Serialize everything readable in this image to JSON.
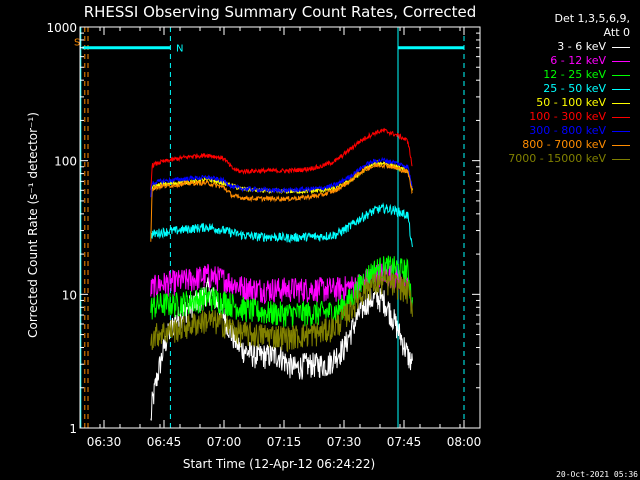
{
  "chart_data": {
    "type": "line",
    "title": "RHESSI Observing Summary Count Rates, Corrected",
    "xlabel": "Start Time (12-Apr-12 06:24:22)",
    "ylabel": "Corrected Count Rate (s⁻¹ detector⁻¹)",
    "x_unit": "minutes since 06:24",
    "xlim": [
      0,
      100
    ],
    "ylim": [
      1,
      1000
    ],
    "yscale": "log",
    "x_ticks": [
      {
        "value": 6,
        "label": "06:30"
      },
      {
        "value": 21,
        "label": "06:45"
      },
      {
        "value": 36,
        "label": "07:00"
      },
      {
        "value": 51,
        "label": "07:15"
      },
      {
        "value": 66,
        "label": "07:30"
      },
      {
        "value": 81,
        "label": "07:45"
      },
      {
        "value": 96,
        "label": "08:00"
      }
    ],
    "y_ticks": [
      {
        "value": 1,
        "label": "1"
      },
      {
        "value": 10,
        "label": "10"
      },
      {
        "value": 100,
        "label": "100"
      },
      {
        "value": 1000,
        "label": "1000"
      }
    ],
    "markers": [
      {
        "type": "solid",
        "x": 0.2,
        "color": "#00ffff"
      },
      {
        "type": "dashed",
        "x": 1.2,
        "color": "#ff8c00"
      },
      {
        "type": "dashed",
        "x": 2.0,
        "color": "#ff8c00"
      },
      {
        "type": "dashed",
        "x": 22.6,
        "color": "#00ffff"
      },
      {
        "type": "solid",
        "x": 79.5,
        "color": "#00ffff"
      },
      {
        "type": "dashed",
        "x": 96.0,
        "color": "#00ffff"
      }
    ],
    "night_bars": [
      {
        "x0": 0.6,
        "x1": 22.6,
        "y": 700,
        "color": "#00ffff"
      },
      {
        "x0": 79.5,
        "x1": 96.0,
        "y": 700,
        "color": "#00ffff"
      }
    ],
    "flag_labels": [
      {
        "text": "S",
        "x": -1.5,
        "y": 780,
        "color": "#ff8c00"
      },
      {
        "text": "N",
        "x": 24.0,
        "y": 700,
        "color": "#00ffff"
      }
    ],
    "series": [
      {
        "name": "3 - 6 keV",
        "color": "#ffffff",
        "x": [
          17.7,
          18,
          19,
          20,
          21,
          22,
          24,
          26,
          28,
          30,
          32,
          34,
          36,
          38,
          40,
          42,
          44,
          46,
          48,
          50,
          52,
          54,
          56,
          58,
          60,
          62,
          64,
          66,
          68,
          70,
          72,
          74,
          76,
          78,
          80,
          82,
          83.2
        ],
        "y": [
          1.1,
          1.5,
          2.2,
          3.0,
          4.0,
          5.0,
          6.5,
          7.5,
          8.5,
          9.0,
          11.0,
          9.0,
          7.0,
          5.0,
          4.0,
          3.7,
          3.5,
          3.5,
          3.5,
          3.5,
          3.0,
          2.8,
          3.0,
          3.0,
          3.0,
          3.0,
          3.5,
          4.0,
          5.5,
          7.5,
          9.0,
          9.5,
          9.0,
          7.0,
          5.0,
          3.5,
          3.0
        ]
      },
      {
        "name": "6 - 12 keV",
        "color": "#ff00ff",
        "x": [
          17.7,
          20,
          24,
          28,
          32,
          36,
          40,
          44,
          48,
          52,
          56,
          60,
          64,
          68,
          70,
          72,
          74,
          76,
          78,
          80,
          82,
          83.2
        ],
        "y": [
          11,
          12,
          12.5,
          13,
          14,
          13,
          11.5,
          11,
          11,
          11,
          11,
          11,
          11,
          11.5,
          12,
          13,
          14,
          14.5,
          14,
          13,
          12,
          8
        ]
      },
      {
        "name": "12 - 25 keV",
        "color": "#00ff00",
        "x": [
          17.7,
          20,
          24,
          28,
          32,
          36,
          40,
          44,
          48,
          52,
          56,
          60,
          64,
          68,
          70,
          72,
          74,
          76,
          78,
          80,
          82,
          83.2
        ],
        "y": [
          8,
          8.5,
          8.5,
          9,
          9.5,
          9,
          8,
          7.5,
          7.3,
          7.2,
          7.3,
          7.3,
          7.5,
          9.5,
          12,
          14,
          15.5,
          16,
          16,
          15.5,
          15,
          8
        ]
      },
      {
        "name": "25 - 50 keV",
        "color": "#00ffff",
        "x": [
          17.7,
          20,
          24,
          28,
          32,
          36,
          40,
          44,
          48,
          52,
          56,
          60,
          64,
          68,
          70,
          72,
          74,
          76,
          78,
          80,
          82,
          83.2
        ],
        "y": [
          28,
          29,
          30,
          31,
          32,
          30,
          28,
          27,
          27,
          26.5,
          27,
          27,
          28,
          33,
          37,
          40,
          43,
          44,
          43,
          41,
          39,
          20
        ]
      },
      {
        "name": "50 - 100 keV",
        "color": "#ffff00",
        "x": [
          17.7,
          20,
          24,
          28,
          32,
          36,
          40,
          44,
          48,
          52,
          56,
          60,
          64,
          68,
          70,
          72,
          74,
          76,
          78,
          80,
          82,
          83.2
        ],
        "y": [
          63,
          66,
          68,
          70,
          72,
          68,
          62,
          60,
          59,
          59,
          59,
          60,
          62,
          72,
          80,
          90,
          95,
          96,
          92,
          88,
          84,
          58
        ]
      },
      {
        "name": "100 - 300 keV",
        "color": "#ff0000",
        "x": [
          17.7,
          18,
          20,
          24,
          28,
          32,
          36,
          38,
          40,
          44,
          48,
          52,
          56,
          60,
          64,
          68,
          70,
          72,
          74,
          76,
          78,
          80,
          82,
          83.2
        ],
        "y": [
          60,
          92,
          97,
          103,
          108,
          110,
          104,
          88,
          83,
          84,
          84,
          84,
          86,
          90,
          100,
          125,
          140,
          152,
          163,
          168,
          160,
          152,
          140,
          85
        ]
      },
      {
        "name": "300 - 800 keV",
        "color": "#0000ff",
        "x": [
          17.7,
          18,
          20,
          24,
          28,
          32,
          36,
          38,
          40,
          44,
          48,
          52,
          56,
          60,
          64,
          68,
          70,
          72,
          74,
          76,
          78,
          80,
          82,
          83.2
        ],
        "y": [
          55,
          68,
          70,
          72,
          74,
          75,
          71,
          64,
          62,
          61,
          60,
          60,
          61,
          62,
          66,
          78,
          87,
          95,
          100,
          101,
          98,
          94,
          90,
          60
        ]
      },
      {
        "name": "800 - 7000 keV",
        "color": "#ff8c00",
        "x": [
          17.7,
          18,
          20,
          24,
          28,
          32,
          36,
          38,
          40,
          44,
          48,
          52,
          56,
          60,
          64,
          68,
          70,
          72,
          74,
          76,
          78,
          80,
          82,
          83.2
        ],
        "y": [
          25,
          62,
          64,
          66,
          68,
          68,
          63,
          55,
          53,
          52,
          52,
          52,
          53,
          55,
          60,
          72,
          82,
          88,
          92,
          93,
          90,
          86,
          82,
          55
        ]
      },
      {
        "name": "7000 - 15000 keV",
        "color": "#808000",
        "x": [
          17.7,
          20,
          24,
          28,
          32,
          36,
          40,
          44,
          48,
          52,
          56,
          60,
          64,
          68,
          70,
          72,
          74,
          76,
          78,
          80,
          82,
          83.2
        ],
        "y": [
          4.8,
          5.2,
          5.5,
          6.0,
          6.5,
          6.0,
          5.2,
          5.0,
          5.0,
          4.8,
          5.0,
          5.2,
          5.8,
          8.0,
          10.0,
          11.5,
          12.0,
          12.5,
          12.0,
          11.5,
          10.5,
          8.0
        ]
      }
    ]
  },
  "legend": {
    "detectors_line1": "Det 1,3,5,6,9,",
    "detectors_line2": "Att 0"
  },
  "footer": {
    "timestamp": "20-Oct-2021 05:36"
  }
}
